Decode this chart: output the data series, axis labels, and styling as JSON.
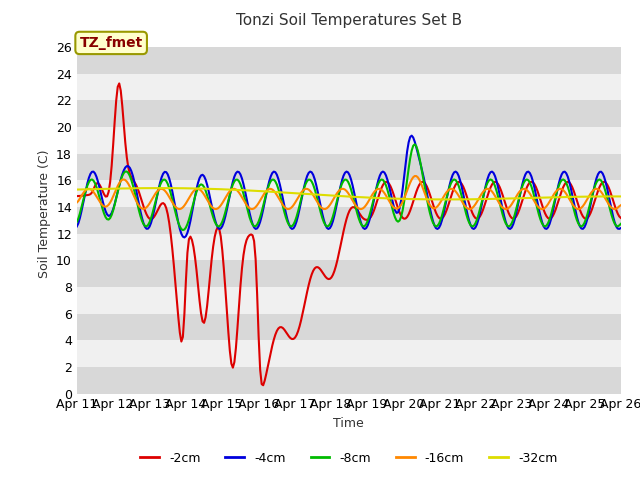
{
  "title": "Tonzi Soil Temperatures Set B",
  "xlabel": "Time",
  "ylabel": "Soil Temperature (C)",
  "annotation_text": "TZ_fmet",
  "background_color": "#ffffff",
  "plot_bg_color": "#ffffff",
  "ylim": [
    0,
    27
  ],
  "yticks": [
    0,
    2,
    4,
    6,
    8,
    10,
    12,
    14,
    16,
    18,
    20,
    22,
    24,
    26
  ],
  "xtick_labels": [
    "Apr 11",
    "Apr 12",
    "Apr 13",
    "Apr 14",
    "Apr 15",
    "Apr 16",
    "Apr 17",
    "Apr 18",
    "Apr 19",
    "Apr 20",
    "Apr 21",
    "Apr 22",
    "Apr 23",
    "Apr 24",
    "Apr 25",
    "Apr 26"
  ],
  "series": {
    "-2cm": {
      "color": "#dd0000",
      "lw": 1.5
    },
    "-4cm": {
      "color": "#0000dd",
      "lw": 1.5
    },
    "-8cm": {
      "color": "#00bb00",
      "lw": 1.5
    },
    "-16cm": {
      "color": "#ff8800",
      "lw": 1.5
    },
    "-32cm": {
      "color": "#dddd00",
      "lw": 1.5
    }
  },
  "legend_order": [
    "-2cm",
    "-4cm",
    "-8cm",
    "-16cm",
    "-32cm"
  ],
  "band_color_odd": "#d8d8d8",
  "band_color_even": "#f0f0f0"
}
